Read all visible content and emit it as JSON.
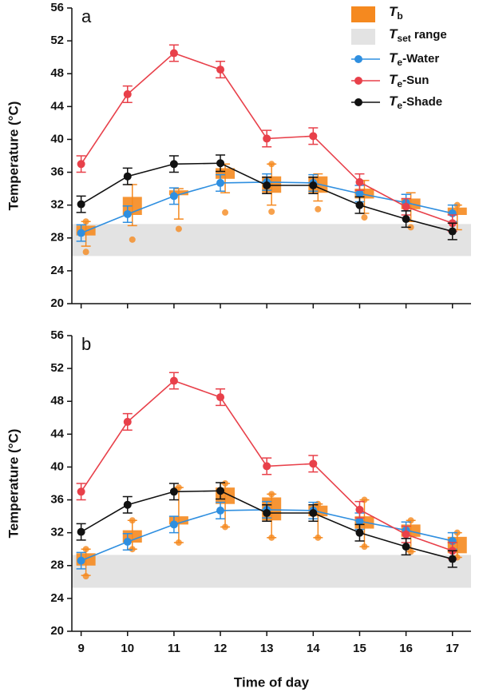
{
  "chart_data": [
    {
      "type": "line",
      "panel_label": "a",
      "ylabel": "Temperature (°C)",
      "x": [
        9,
        10,
        11,
        12,
        13,
        14,
        15,
        16,
        17
      ],
      "xlim": [
        8.8,
        17.4
      ],
      "ylim": [
        20,
        56
      ],
      "yticks": [
        20,
        24,
        28,
        32,
        36,
        40,
        44,
        48,
        52,
        56
      ],
      "legend": "top-right",
      "tset_range": {
        "name": {
          "italic": "T",
          "sub": "set",
          "rest": " range"
        },
        "color": "#e3e3e3",
        "low": 25.8,
        "high": 29.7
      },
      "tb": {
        "name": {
          "italic": "T",
          "sub": "b"
        },
        "color": "#f5891f",
        "box_low": [
          28.3,
          30.8,
          33.2,
          35.2,
          33.5,
          33.5,
          32.8,
          31.5,
          30.8
        ],
        "box_high": [
          29.5,
          33.0,
          33.8,
          36.5,
          35.5,
          35.5,
          34.0,
          32.8,
          31.7
        ],
        "whisker_low": [
          27.0,
          29.5,
          30.3,
          33.5,
          32.0,
          32.5,
          31.0,
          30.0,
          29.0
        ],
        "whisker_high": [
          30.0,
          34.5,
          34.0,
          37.0,
          37.0,
          35.8,
          35.0,
          33.5,
          32.0
        ],
        "points": [
          [
            30.0,
            26.3
          ],
          [
            27.8
          ],
          [
            29.1
          ],
          [
            31.1
          ],
          [
            31.2,
            37.0
          ],
          [
            31.5
          ],
          [
            30.5
          ],
          [
            29.3
          ],
          [
            32.0
          ]
        ]
      },
      "series": [
        {
          "name": {
            "italic": "T",
            "sub": "e",
            "rest": "-Water"
          },
          "color": "#2f8fe0",
          "values": [
            28.6,
            30.9,
            33.1,
            34.7,
            34.8,
            34.7,
            33.4,
            32.3,
            31.0
          ],
          "errors": [
            1.0,
            1.0,
            1.0,
            1.0,
            1.0,
            1.0,
            1.0,
            1.0,
            1.0
          ]
        },
        {
          "name": {
            "italic": "T",
            "sub": "e",
            "rest": "-Sun"
          },
          "color": "#e8404a",
          "values": [
            37.0,
            45.5,
            50.5,
            48.5,
            40.1,
            40.4,
            34.8,
            31.8,
            29.8
          ],
          "errors": [
            1.0,
            1.0,
            1.0,
            1.0,
            1.0,
            1.0,
            1.0,
            1.0,
            1.0
          ]
        },
        {
          "name": {
            "italic": "T",
            "sub": "e",
            "rest": "-Shade"
          },
          "color": "#111111",
          "values": [
            32.1,
            35.5,
            37.0,
            37.1,
            34.4,
            34.4,
            32.0,
            30.3,
            28.8
          ],
          "errors": [
            1.0,
            1.0,
            1.0,
            1.0,
            1.0,
            1.0,
            1.0,
            1.0,
            1.0
          ]
        }
      ]
    },
    {
      "type": "line",
      "panel_label": "b",
      "ylabel": "Temperature (°C)",
      "xlabel": "Time of day",
      "x": [
        9,
        10,
        11,
        12,
        13,
        14,
        15,
        16,
        17
      ],
      "xlim": [
        8.8,
        17.4
      ],
      "xticks": [
        9,
        10,
        11,
        12,
        13,
        14,
        15,
        16,
        17
      ],
      "ylim": [
        20,
        56
      ],
      "yticks": [
        20,
        24,
        28,
        32,
        36,
        40,
        44,
        48,
        52,
        56
      ],
      "tset_range": {
        "color": "#e3e3e3",
        "low": 25.3,
        "high": 29.3
      },
      "tb": {
        "color": "#f5891f",
        "box_low": [
          28.0,
          30.8,
          33.0,
          35.5,
          33.5,
          34.0,
          32.5,
          31.5,
          29.5
        ],
        "box_high": [
          29.5,
          32.3,
          34.0,
          37.5,
          36.3,
          35.3,
          34.0,
          33.0,
          31.5
        ],
        "whisker_low": [
          26.8,
          30.0,
          30.8,
          32.7,
          31.4,
          31.4,
          30.3,
          29.7,
          29.0
        ],
        "whisker_high": [
          30.0,
          33.5,
          37.5,
          38.0,
          36.7,
          35.5,
          36.0,
          33.5,
          32.0
        ],
        "points": [
          [
            30.0,
            26.7
          ],
          [
            30.0,
            33.5
          ],
          [
            30.8,
            37.5
          ],
          [
            32.7,
            38.0
          ],
          [
            31.4,
            36.7
          ],
          [
            31.4,
            35.5
          ],
          [
            30.3,
            36.0
          ],
          [
            29.7,
            33.5
          ],
          [
            29.0,
            32.0
          ]
        ]
      },
      "series": [
        {
          "color": "#2f8fe0",
          "values": [
            28.6,
            30.9,
            33.0,
            34.7,
            34.8,
            34.7,
            33.4,
            32.3,
            31.0
          ],
          "errors": [
            1.0,
            1.0,
            1.0,
            1.0,
            1.0,
            1.0,
            1.0,
            1.0,
            1.0
          ]
        },
        {
          "color": "#e8404a",
          "values": [
            37.0,
            45.5,
            50.5,
            48.5,
            40.1,
            40.4,
            34.8,
            31.8,
            29.8
          ],
          "errors": [
            1.0,
            1.0,
            1.0,
            1.0,
            1.0,
            1.0,
            1.0,
            1.0,
            1.0
          ]
        },
        {
          "color": "#111111",
          "values": [
            32.1,
            35.4,
            37.0,
            37.1,
            34.4,
            34.4,
            32.0,
            30.3,
            28.8
          ],
          "errors": [
            1.0,
            1.0,
            1.0,
            1.0,
            1.0,
            1.0,
            1.0,
            1.0,
            1.0
          ]
        }
      ]
    }
  ]
}
